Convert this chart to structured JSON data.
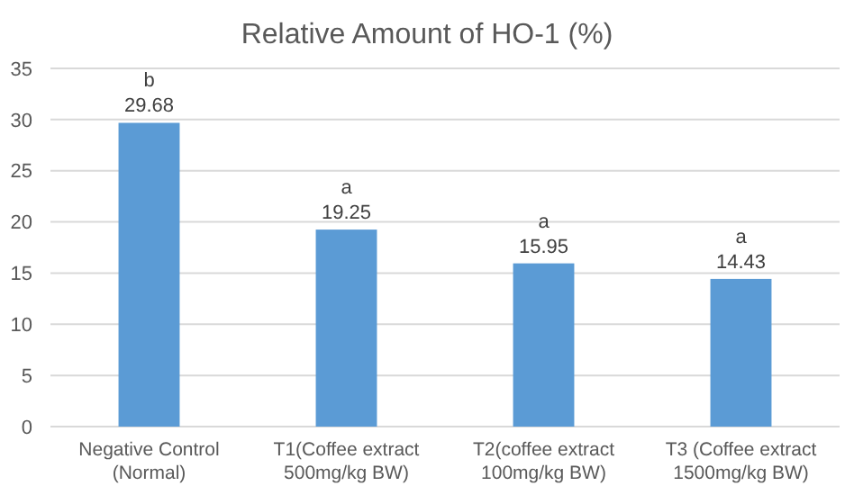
{
  "chart_data": {
    "type": "bar",
    "title": "Relative Amount of HO-1 (%)",
    "categories": [
      "Negative Control\n(Normal)",
      "T1(Coffee extract\n500mg/kg BW)",
      "T2(coffee extract\n100mg/kg BW)",
      "T3 (Coffee extract\n1500mg/kg BW)"
    ],
    "values": [
      29.68,
      19.25,
      15.95,
      14.43
    ],
    "color": "#5b9bd5",
    "ylim": [
      0,
      35
    ],
    "yticks": [
      0,
      5,
      10,
      15,
      20,
      25,
      30,
      35
    ],
    "grid": "y",
    "data_labels": true,
    "annotations": [
      {
        "text": "b",
        "x": "Negative Control\n(Normal)",
        "y": 29.68
      },
      {
        "text": "a",
        "x": "T1(Coffee extract\n500mg/kg BW)",
        "y": 19.25
      },
      {
        "text": "a",
        "x": "T2(coffee extract\n100mg/kg BW)",
        "y": 15.95
      },
      {
        "text": "a",
        "x": "T3 (Coffee extract\n1500mg/kg BW)",
        "y": 14.43
      }
    ]
  }
}
